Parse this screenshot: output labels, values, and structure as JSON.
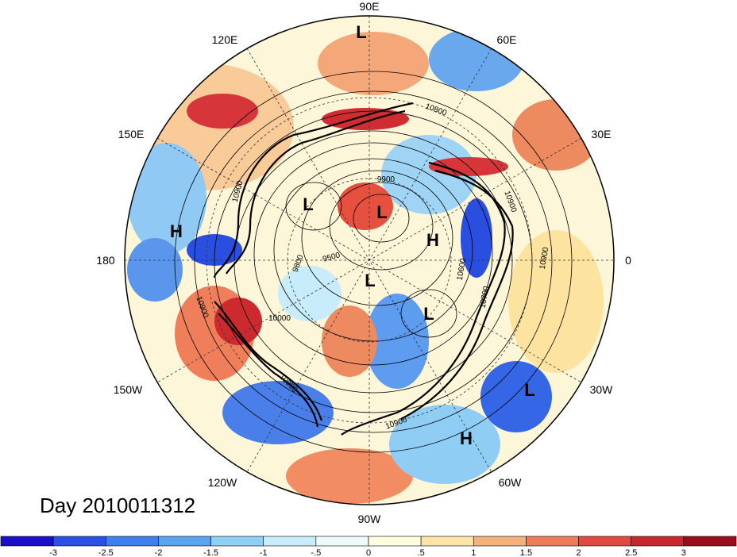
{
  "map": {
    "type": "polar-stereographic-northern-hemisphere",
    "longitude_labels": [
      "90E",
      "60E",
      "30E",
      "0",
      "30W",
      "60W",
      "90W",
      "120W",
      "150W",
      "180",
      "150E",
      "120E"
    ],
    "day_label": "Day 2010011312"
  },
  "centers": [
    {
      "label": "L"
    },
    {
      "label": "L"
    },
    {
      "label": "L"
    },
    {
      "label": "L"
    },
    {
      "label": "L"
    },
    {
      "label": "L"
    },
    {
      "label": "H"
    },
    {
      "label": "H"
    },
    {
      "label": "H"
    }
  ],
  "contour_labels": [
    "10800",
    "9900",
    "10900",
    "9800",
    "9500",
    "10000",
    "10900",
    "10900",
    "10600",
    "10700",
    "10900",
    "10900",
    "10900"
  ],
  "colorbar": {
    "colors": [
      "#1a0fc9",
      "#2a50e6",
      "#3e7ff0",
      "#5aa2f2",
      "#8fd0f7",
      "#c8ecf9",
      "#eefbfd",
      "#fffce0",
      "#fde6a5",
      "#f6b07a",
      "#ee7c58",
      "#e34a3f",
      "#c9272e",
      "#9a0d1d"
    ],
    "labels": [
      "-3",
      "-2.5",
      "-2",
      "-1.5",
      "-1",
      "-.5",
      "0",
      ".5",
      "1",
      "1.5",
      "2",
      "2.5",
      "3"
    ]
  }
}
